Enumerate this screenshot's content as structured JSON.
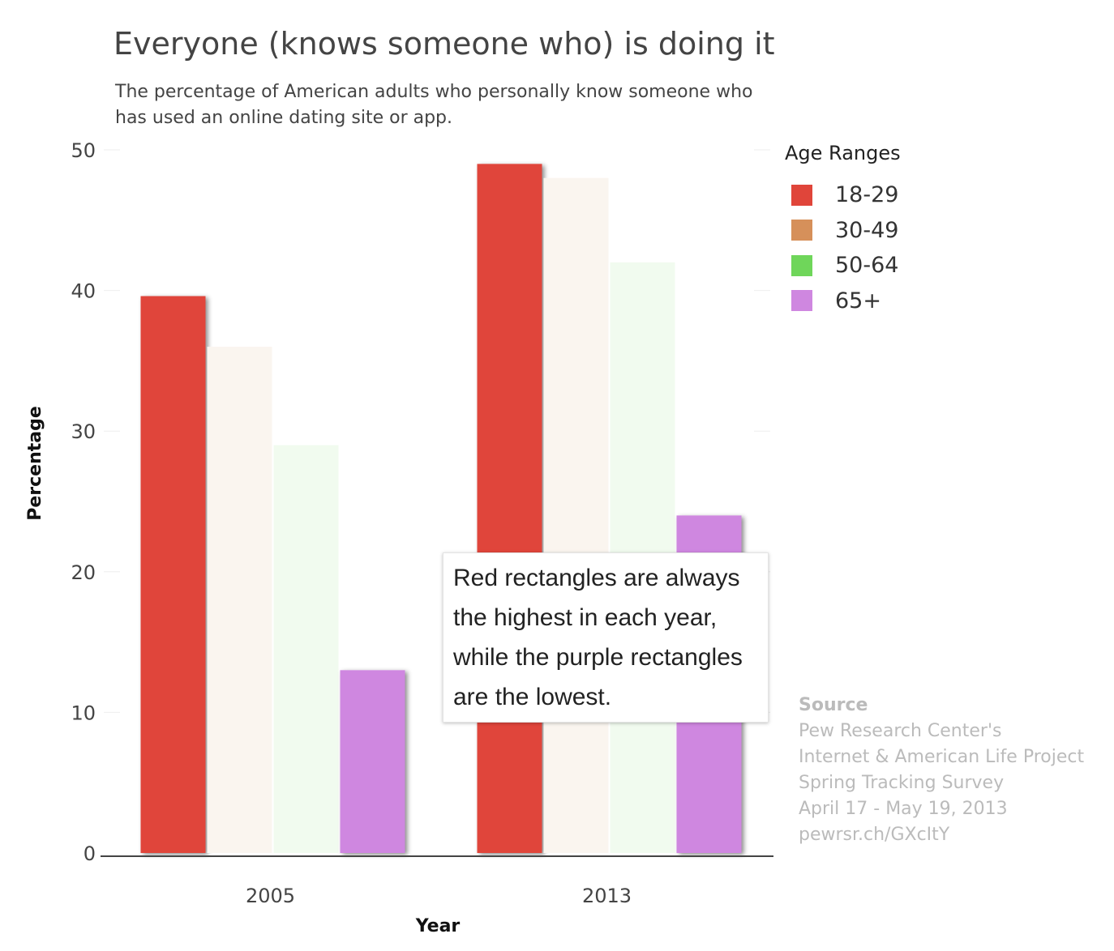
{
  "chart_data": {
    "type": "bar",
    "title": "Everyone (knows someone who) is doing it",
    "subtitle": "The percentage of American adults who personally know someone who has used an online dating site or app.",
    "xlabel": "Year",
    "ylabel": "Percentage",
    "categories": [
      "2005",
      "2013"
    ],
    "ylim": [
      0,
      50
    ],
    "yticks": [
      "0",
      "10",
      "20",
      "30",
      "40",
      "50"
    ],
    "grid": true,
    "legend_position": "right",
    "legend_title": "Age Ranges",
    "series": [
      {
        "name": "18-29",
        "values": [
          39.6,
          49
        ],
        "color": "#e0453a",
        "highlighted": true
      },
      {
        "name": "30-49",
        "values": [
          36,
          48
        ],
        "color": "#d6905a",
        "display_color": "#faf5ef",
        "highlighted": false
      },
      {
        "name": "50-64",
        "values": [
          29,
          42
        ],
        "color": "#6fd65a",
        "display_color": "#f1fbef",
        "highlighted": false
      },
      {
        "name": "65+",
        "values": [
          13,
          24
        ],
        "color": "#cf87e0",
        "highlighted": true
      }
    ],
    "annotation": "Red rectangles are always the highest in each year, while the purple rectangles are the lowest.",
    "source": {
      "heading": "Source",
      "lines": [
        "Pew Research Center's",
        "Internet & American Life Project",
        "Spring Tracking Survey",
        "April 17 - May 19, 2013",
        "pewrsr.ch/GXcItY"
      ]
    }
  }
}
